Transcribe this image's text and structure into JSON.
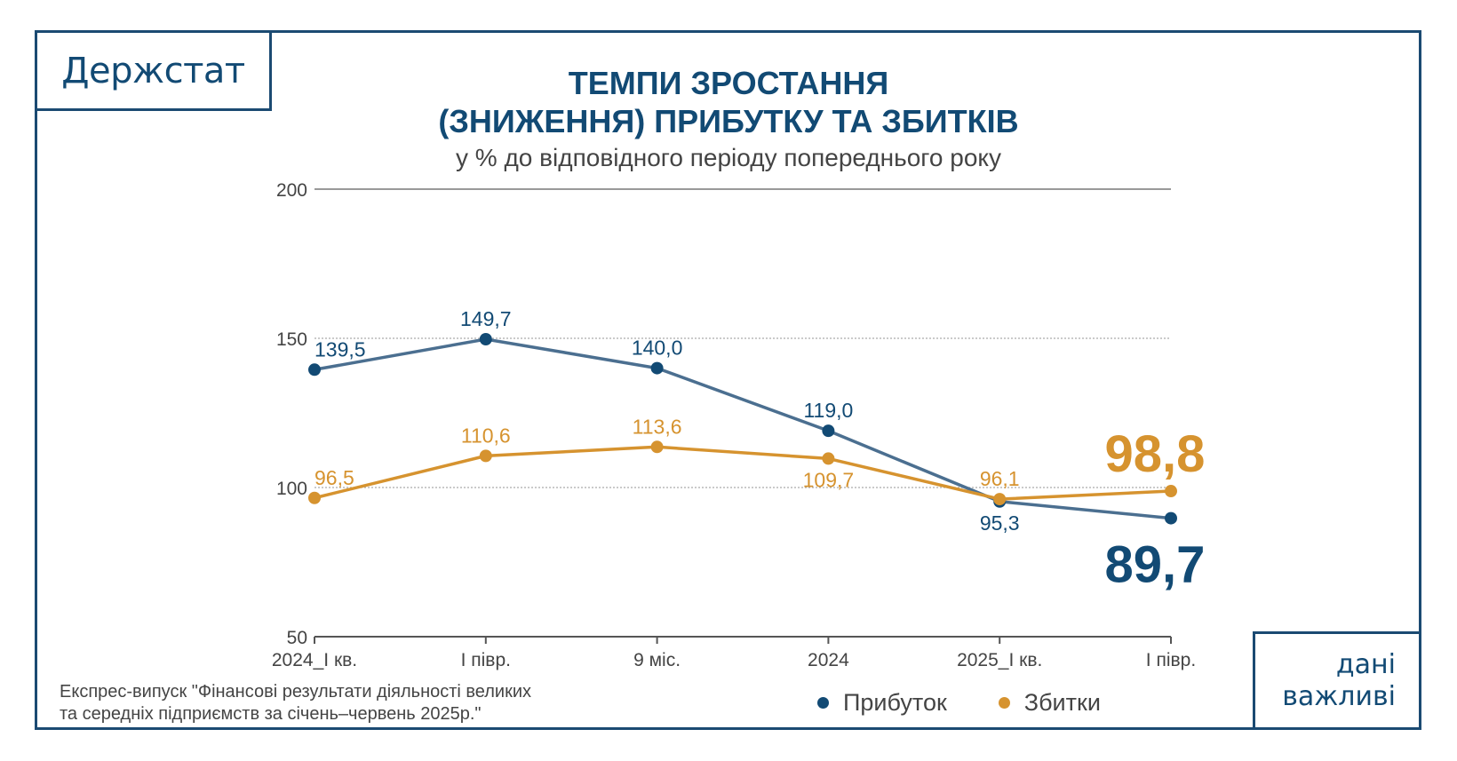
{
  "brand": {
    "logo": "Держстат",
    "badge_lines": [
      "дані",
      "важливі"
    ]
  },
  "colors": {
    "primary": "#124a74",
    "profit": "#124a74",
    "profit_line": "#4b6f90",
    "loss": "#d6932f"
  },
  "footnote": {
    "line1": "Експрес-випуск \"Фінансові результати діяльності великих",
    "line2": "та середніх підприємств за січень–червень 2025р.\""
  },
  "chart_data": {
    "type": "line",
    "title_line1": "ТЕМПИ ЗРОСТАННЯ",
    "title_line2": "(ЗНИЖЕННЯ) ПРИБУТКУ ТА ЗБИТКІВ",
    "subtitle": "у % до відповідного періоду попереднього року",
    "xlabel": "",
    "ylabel": "",
    "categories": [
      "2024_I кв.",
      "I півр.",
      "9 міс.",
      "2024",
      "2025_I кв.",
      "I півр."
    ],
    "ylim": [
      50,
      200
    ],
    "yticks": [
      50,
      100,
      150,
      200
    ],
    "grid": true,
    "legend_position": "bottom",
    "series": [
      {
        "name": "Прибуток",
        "color": "#124a74",
        "values": [
          139.5,
          149.7,
          140.0,
          119.0,
          95.3,
          89.7
        ],
        "labels": [
          "139,5",
          "149,7",
          "140,0",
          "119,0",
          "95,3",
          "89,7"
        ]
      },
      {
        "name": "Збитки",
        "color": "#d6932f",
        "values": [
          96.5,
          110.6,
          113.6,
          109.7,
          96.1,
          98.8
        ],
        "labels": [
          "96,5",
          "110,6",
          "113,6",
          "109,7",
          "96,1",
          "98,8"
        ]
      }
    ]
  }
}
